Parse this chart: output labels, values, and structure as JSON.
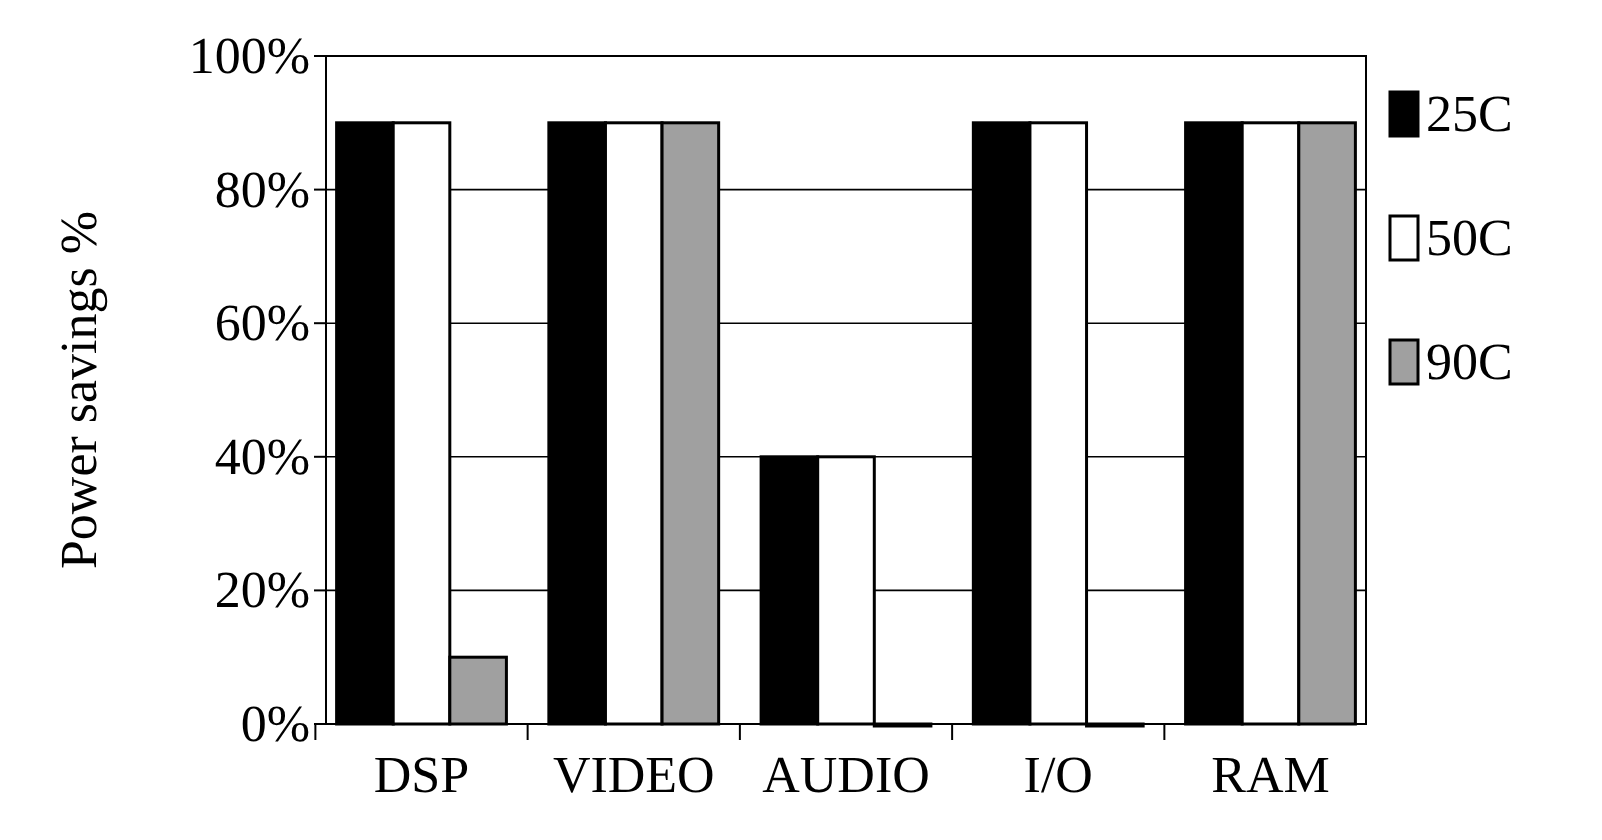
{
  "chart_data": {
    "type": "bar",
    "ylabel": "Power savings %",
    "categories": [
      "DSP",
      "VIDEO",
      "AUDIO",
      "I/O",
      "RAM"
    ],
    "series": [
      {
        "name": "25C",
        "color": "#000000",
        "values": [
          90,
          90,
          40,
          90,
          90
        ]
      },
      {
        "name": "50C",
        "color": "#ffffff",
        "values": [
          90,
          90,
          40,
          90,
          90
        ]
      },
      {
        "name": "90C",
        "color": "#a0a0a0",
        "values": [
          10,
          90,
          0,
          0,
          90
        ]
      }
    ],
    "ylim": [
      0,
      100
    ],
    "yticks": [
      {
        "value": 0,
        "label": "0%"
      },
      {
        "value": 20,
        "label": "20%"
      },
      {
        "value": 40,
        "label": "40%"
      },
      {
        "value": 60,
        "label": "60%"
      },
      {
        "value": 80,
        "label": "80%"
      },
      {
        "value": 100,
        "label": "100%"
      }
    ],
    "grid": "y",
    "legend": "right"
  }
}
